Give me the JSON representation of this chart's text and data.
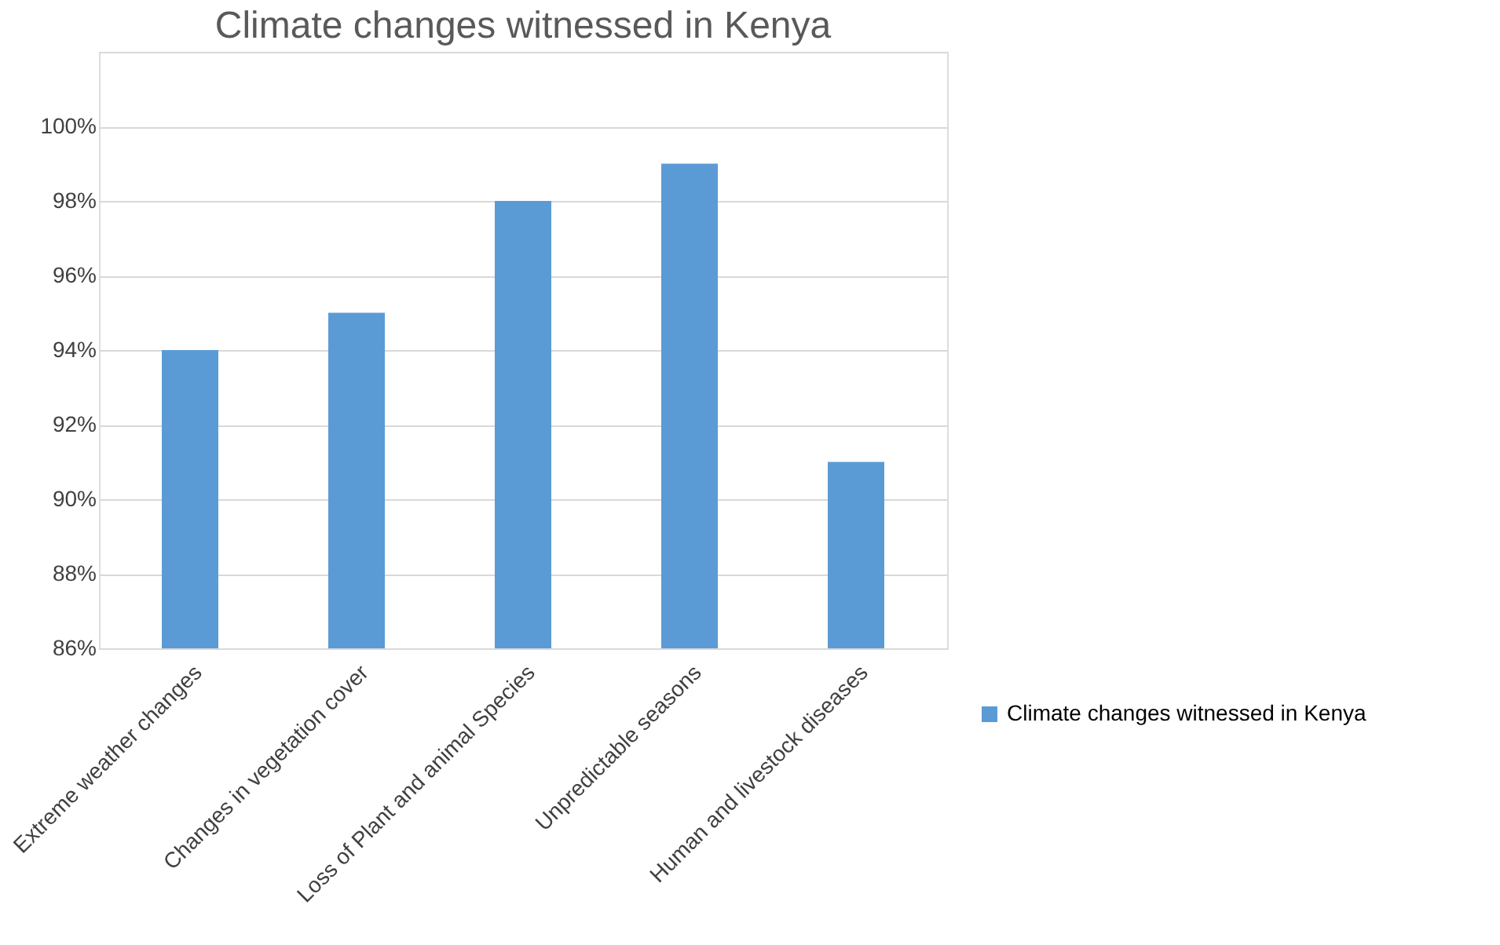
{
  "chart_data": {
    "type": "bar",
    "title": "Climate changes witnessed in Kenya",
    "categories": [
      "Extreme weather changes",
      "Changes in vegetation cover",
      "Loss of Plant and animal Species",
      "Unpredictable seasons",
      "Human and livestock diseases"
    ],
    "series": [
      {
        "name": "Climate changes witnessed in Kenya",
        "color": "#5b9bd5",
        "values": [
          94,
          95,
          98,
          99,
          91
        ]
      }
    ],
    "ylim": [
      86,
      102
    ],
    "yticks": [
      {
        "value": 86,
        "label": "86%"
      },
      {
        "value": 88,
        "label": "88%"
      },
      {
        "value": 90,
        "label": "90%"
      },
      {
        "value": 92,
        "label": "92%"
      },
      {
        "value": 94,
        "label": "94%"
      },
      {
        "value": 96,
        "label": "96%"
      },
      {
        "value": 98,
        "label": "98%"
      },
      {
        "value": 100,
        "label": "100%"
      },
      {
        "value": 102,
        "label": null
      }
    ],
    "grid": "y",
    "legend": "bottom right"
  }
}
